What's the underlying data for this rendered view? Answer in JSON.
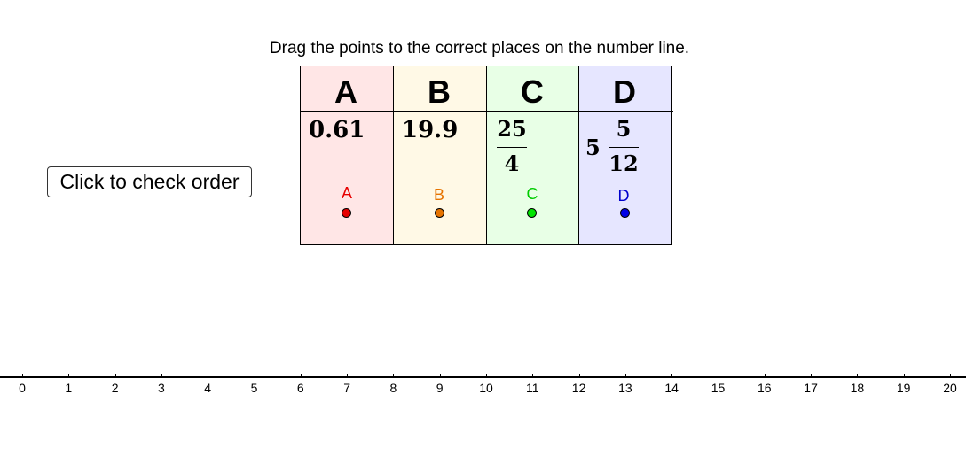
{
  "instruction": "Drag the points to the correct places on the number line.",
  "check_button_label": "Click to check order",
  "columns": [
    {
      "letter": "A",
      "value": "0.61",
      "color": "#e60000",
      "bg": "#ffe6e6"
    },
    {
      "letter": "B",
      "value": "19.9",
      "color": "#e67300",
      "bg": "#fff9e6"
    },
    {
      "letter": "C",
      "numerator": "25",
      "denominator": "4",
      "color": "#00cc00",
      "bg": "#e8ffe6"
    },
    {
      "letter": "D",
      "whole": "5",
      "numerator": "5",
      "denominator": "12",
      "color": "#0000cc",
      "bg": "#e6e6ff"
    }
  ],
  "points": [
    {
      "label": "A",
      "color": "#e60000",
      "fill": "#e60000"
    },
    {
      "label": "B",
      "color": "#e67300",
      "fill": "#e67300"
    },
    {
      "label": "C",
      "color": "#00cc00",
      "fill": "#00e600"
    },
    {
      "label": "D",
      "color": "#0000cc",
      "fill": "#0000e6"
    }
  ],
  "number_line": {
    "min": 0,
    "max": 20,
    "ticks": [
      "0",
      "1",
      "2",
      "3",
      "4",
      "5",
      "6",
      "7",
      "8",
      "9",
      "10",
      "11",
      "12",
      "13",
      "14",
      "15",
      "16",
      "17",
      "18",
      "19",
      "20"
    ]
  }
}
